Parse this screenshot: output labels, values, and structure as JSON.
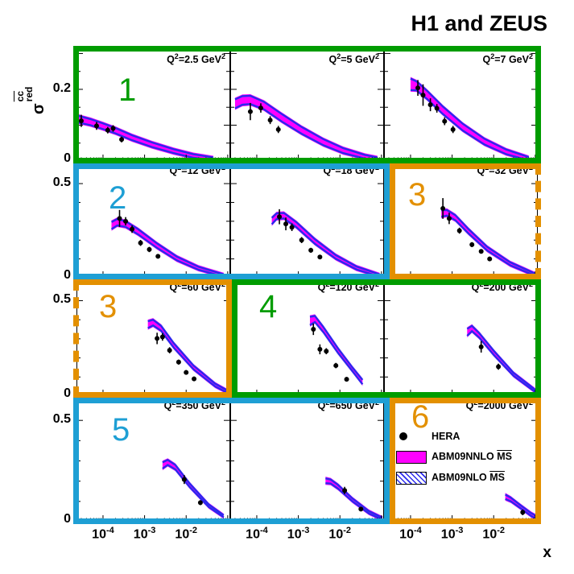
{
  "title": "H1 and ZEUS",
  "y_axis": {
    "symbol": "σ",
    "sup": "cc",
    "sub": "red"
  },
  "x_axis": {
    "label": "x",
    "base": "10",
    "exponents": [
      "-4",
      "-3",
      "-2"
    ]
  },
  "legend": {
    "items": [
      {
        "marker": "hera-point",
        "label": "HERA"
      },
      {
        "marker": "band-magenta",
        "label": "ABM09NNLO ",
        "overline": "MS"
      },
      {
        "marker": "band-hatched",
        "label": "ABM09NLO ",
        "overline": "MS"
      }
    ]
  },
  "colors": {
    "group_green": "#009C00",
    "group_blue": "#1E9FD4",
    "group_orange": "#E39000",
    "band_fill": "#FF00FF",
    "band_edge": "#2A2AEE",
    "marker": "#000000"
  },
  "chart_data": {
    "type": "area",
    "description": "HERA combined reduced charm cross sections sigma_red(cc) versus x in bins of Q2, compared with ABM09 NNLO (magenta band) and NLO (hatched band) predictions",
    "x_scale": "log",
    "x_range": [
      2.3e-05,
      0.115
    ],
    "x_decades": [
      -4,
      -3,
      -2
    ],
    "rows": [
      {
        "ymax": 0.31,
        "ytick_val": 0.2,
        "ytick_label": "0.2",
        "zero_label": "0",
        "minor": 0.05,
        "major_mult": 0.1
      },
      {
        "ymax": 0.62,
        "ytick_val": 0.5,
        "ytick_label": "0.5",
        "zero_label": "0",
        "minor": 0.1,
        "major_mult": 0.5
      },
      {
        "ymax": 0.62,
        "ytick_val": 0.5,
        "ytick_label": "0.5",
        "zero_label": "0",
        "minor": 0.1,
        "major_mult": 0.5
      },
      {
        "ymax": 0.62,
        "ytick_val": 0.5,
        "ytick_label": "0.5",
        "zero_label": "0",
        "minor": 0.1,
        "major_mult": 0.5
      }
    ],
    "panels": [
      {
        "q2": "2.5",
        "unit": "GeV",
        "row": 0,
        "col": 0,
        "group_label": "1",
        "group_color_key": "group_green",
        "band": {
          "x": [
            2.4e-05,
            5e-05,
            0.0001,
            0.0002,
            0.0005,
            0.0015,
            0.005,
            0.015,
            0.045
          ],
          "hi": [
            0.127,
            0.117,
            0.105,
            0.092,
            0.072,
            0.052,
            0.033,
            0.019,
            0.01
          ],
          "lo": [
            0.108,
            0.1,
            0.089,
            0.077,
            0.058,
            0.039,
            0.022,
            0.009,
            0.002
          ]
        },
        "points": {
          "x": [
            3e-05,
            7e-05,
            0.00013,
            0.000175,
            0.00028
          ],
          "y": [
            0.112,
            0.098,
            0.086,
            0.091,
            0.06
          ],
          "ey": [
            0.017,
            0.011,
            0.009,
            0.009,
            0.008
          ]
        }
      },
      {
        "q2": "5",
        "unit": "GeV",
        "row": 0,
        "col": 1,
        "group_color_key": null,
        "band": {
          "x": [
            3e-05,
            4.5e-05,
            7e-05,
            0.00015,
            0.0004,
            0.0012,
            0.004,
            0.012,
            0.04,
            0.08
          ],
          "hi": [
            0.172,
            0.181,
            0.182,
            0.165,
            0.131,
            0.095,
            0.061,
            0.036,
            0.017,
            0.01
          ],
          "lo": [
            0.147,
            0.157,
            0.159,
            0.144,
            0.11,
            0.076,
            0.044,
            0.022,
            0.007,
            0.002
          ]
        },
        "points": {
          "x": [
            7e-05,
            0.000125,
            0.00021,
            0.00033
          ],
          "y": [
            0.138,
            0.148,
            0.114,
            0.088
          ],
          "ey": [
            0.024,
            0.013,
            0.011,
            0.01
          ]
        }
      },
      {
        "q2": "7",
        "unit": "GeV",
        "row": 0,
        "col": 2,
        "group_color_key": null,
        "band": {
          "x": [
            0.0001,
            0.00014,
            0.00025,
            0.0006,
            0.0018,
            0.006,
            0.02,
            0.07
          ],
          "hi": [
            0.23,
            0.222,
            0.196,
            0.152,
            0.104,
            0.062,
            0.032,
            0.011
          ],
          "lo": [
            0.198,
            0.197,
            0.173,
            0.131,
            0.085,
            0.046,
            0.019,
            0.002
          ]
        },
        "points": {
          "x": [
            0.00015,
            0.0002,
            0.0003,
            0.00043,
            0.00066,
            0.00105
          ],
          "y": [
            0.204,
            0.184,
            0.157,
            0.147,
            0.111,
            0.088
          ],
          "ey": [
            0.022,
            0.03,
            0.018,
            0.012,
            0.011,
            0.01
          ]
        }
      },
      {
        "q2": "12",
        "unit": "GeV",
        "row": 1,
        "col": 0,
        "group_label": "2",
        "group_color_key": "group_blue",
        "band": {
          "x": [
            0.00016,
            0.00022,
            0.00035,
            0.0007,
            0.002,
            0.006,
            0.02,
            0.08
          ],
          "hi": [
            0.296,
            0.312,
            0.3,
            0.258,
            0.182,
            0.112,
            0.058,
            0.018
          ],
          "lo": [
            0.258,
            0.278,
            0.27,
            0.23,
            0.158,
            0.092,
            0.042,
            0.006
          ]
        },
        "points": {
          "x": [
            0.00025,
            0.00035,
            0.0005,
            0.0008,
            0.0013,
            0.0021
          ],
          "y": [
            0.315,
            0.3,
            0.258,
            0.185,
            0.15,
            0.114
          ],
          "ey": [
            0.045,
            0.022,
            0.02,
            0.016,
            0.014,
            0.012
          ]
        }
      },
      {
        "q2": "18",
        "unit": "GeV",
        "row": 1,
        "col": 1,
        "group_color_key": null,
        "band": {
          "x": [
            0.00023,
            0.0003,
            0.00045,
            0.0009,
            0.0025,
            0.008,
            0.025,
            0.09
          ],
          "hi": [
            0.318,
            0.342,
            0.344,
            0.295,
            0.205,
            0.12,
            0.06,
            0.018
          ],
          "lo": [
            0.284,
            0.312,
            0.315,
            0.268,
            0.18,
            0.1,
            0.044,
            0.006
          ]
        },
        "points": {
          "x": [
            0.00035,
            0.0005,
            0.0007,
            0.0012,
            0.002,
            0.0033
          ],
          "y": [
            0.324,
            0.286,
            0.268,
            0.2,
            0.146,
            0.11
          ],
          "ey": [
            0.04,
            0.034,
            0.02,
            0.016,
            0.013,
            0.011
          ]
        }
      },
      {
        "q2": "32",
        "unit": "GeV",
        "row": 1,
        "col": 2,
        "group_label": "3",
        "group_color_key": "group_orange",
        "band": {
          "x": [
            0.00055,
            0.00075,
            0.0012,
            0.0025,
            0.007,
            0.025,
            0.1
          ],
          "hi": [
            0.358,
            0.36,
            0.332,
            0.258,
            0.164,
            0.082,
            0.022
          ],
          "lo": [
            0.324,
            0.33,
            0.305,
            0.234,
            0.144,
            0.066,
            0.01
          ]
        },
        "points": {
          "x": [
            0.0006,
            0.00085,
            0.0015,
            0.003,
            0.005,
            0.008
          ],
          "y": [
            0.368,
            0.315,
            0.25,
            0.176,
            0.14,
            0.1
          ],
          "ey": [
            0.055,
            0.03,
            0.016,
            0.013,
            0.012,
            0.012
          ]
        }
      },
      {
        "q2": "60",
        "unit": "GeV",
        "row": 2,
        "col": 0,
        "group_label": "3",
        "group_color_key": "group_orange",
        "band": {
          "x": [
            0.0012,
            0.0016,
            0.0025,
            0.005,
            0.015,
            0.05,
            0.105
          ],
          "hi": [
            0.392,
            0.4,
            0.368,
            0.278,
            0.16,
            0.065,
            0.026
          ],
          "lo": [
            0.356,
            0.37,
            0.342,
            0.254,
            0.14,
            0.05,
            0.014
          ]
        },
        "points": {
          "x": [
            0.002,
            0.0027,
            0.004,
            0.0066,
            0.01,
            0.0155
          ],
          "y": [
            0.302,
            0.31,
            0.24,
            0.178,
            0.124,
            0.09
          ],
          "ey": [
            0.03,
            0.02,
            0.016,
            0.013,
            0.012,
            0.012
          ]
        }
      },
      {
        "q2": "120",
        "unit": "GeV",
        "row": 2,
        "col": 1,
        "group_label": "4",
        "group_color_key": "group_green",
        "band": {
          "x": [
            0.0019,
            0.0025,
            0.004,
            0.009,
            0.02,
            0.035
          ],
          "hi": [
            0.415,
            0.42,
            0.362,
            0.25,
            0.15,
            0.085
          ],
          "lo": [
            0.372,
            0.388,
            0.335,
            0.226,
            0.13,
            0.062
          ]
        },
        "points": {
          "x": [
            0.0023,
            0.0033,
            0.0047,
            0.008,
            0.0145
          ],
          "y": [
            0.35,
            0.245,
            0.235,
            0.16,
            0.088
          ],
          "ey": [
            0.03,
            0.026,
            0.016,
            0.014,
            0.012
          ]
        }
      },
      {
        "q2": "200",
        "unit": "GeV",
        "row": 2,
        "col": 2,
        "group_color_key": null,
        "band": {
          "x": [
            0.0023,
            0.003,
            0.0045,
            0.01,
            0.03,
            0.105
          ],
          "hi": [
            0.352,
            0.368,
            0.33,
            0.238,
            0.122,
            0.03
          ],
          "lo": [
            0.316,
            0.34,
            0.306,
            0.216,
            0.106,
            0.018
          ]
        },
        "points": {
          "x": [
            0.005,
            0.013
          ],
          "y": [
            0.258,
            0.154
          ],
          "ey": [
            0.03,
            0.016
          ]
        }
      },
      {
        "q2": "350",
        "unit": "GeV",
        "row": 3,
        "col": 0,
        "group_label": "5",
        "group_color_key": "group_blue",
        "band": {
          "x": [
            0.0027,
            0.0036,
            0.0055,
            0.012,
            0.035,
            0.08
          ],
          "hi": [
            0.293,
            0.305,
            0.28,
            0.19,
            0.085,
            0.032
          ],
          "lo": [
            0.262,
            0.28,
            0.258,
            0.172,
            0.072,
            0.022
          ]
        },
        "points": {
          "x": [
            0.009,
            0.022
          ],
          "y": [
            0.208,
            0.094
          ],
          "ey": [
            0.022,
            0.012
          ]
        }
      },
      {
        "q2": "650",
        "unit": "GeV",
        "row": 3,
        "col": 1,
        "group_color_key": null,
        "band": {
          "x": [
            0.0045,
            0.006,
            0.009,
            0.02,
            0.05,
            0.105
          ],
          "hi": [
            0.214,
            0.208,
            0.182,
            0.115,
            0.052,
            0.02
          ],
          "lo": [
            0.19,
            0.188,
            0.163,
            0.1,
            0.04,
            0.01
          ]
        },
        "points": {
          "x": [
            0.013,
            0.032
          ],
          "y": [
            0.154,
            0.062
          ],
          "ey": [
            0.018,
            0.01
          ]
        }
      },
      {
        "q2": "2000",
        "unit": "GeV",
        "row": 3,
        "col": 2,
        "group_label": "6",
        "group_color_key": "group_orange",
        "band": {
          "x": [
            0.019,
            0.026,
            0.045,
            0.08,
            0.107
          ],
          "hi": [
            0.134,
            0.118,
            0.08,
            0.042,
            0.028
          ],
          "lo": [
            0.112,
            0.1,
            0.065,
            0.028,
            0.014
          ]
        },
        "points": {
          "x": [
            0.05
          ],
          "y": [
            0.046
          ],
          "ey": [
            0.014
          ]
        }
      }
    ],
    "group_boxes": [
      {
        "number": "1",
        "color_key": "group_green",
        "panels": [
          "2.5",
          "5",
          "7"
        ]
      },
      {
        "number": "2",
        "color_key": "group_blue",
        "panels": [
          "12",
          "18"
        ]
      },
      {
        "number": "3",
        "color_key": "group_orange",
        "panels": [
          "32",
          "60"
        ],
        "dashed_join": true
      },
      {
        "number": "4",
        "color_key": "group_green",
        "panels": [
          "120",
          "200"
        ]
      },
      {
        "number": "5",
        "color_key": "group_blue",
        "panels": [
          "350",
          "650"
        ]
      },
      {
        "number": "6",
        "color_key": "group_orange",
        "panels": [
          "2000"
        ]
      }
    ]
  }
}
